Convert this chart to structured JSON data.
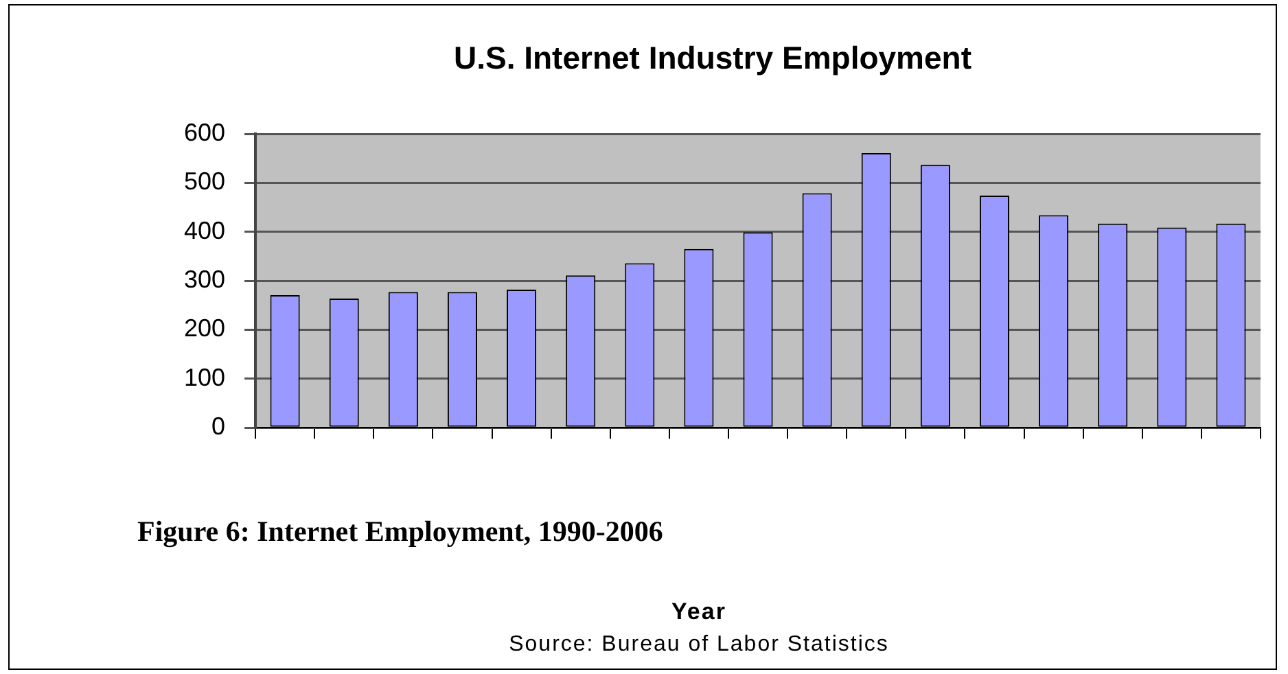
{
  "chart_data": {
    "type": "bar",
    "title": "U.S. Internet Industry Employment",
    "categories": [
      null,
      null,
      null,
      null,
      null,
      null,
      null,
      null,
      null,
      null,
      null,
      null,
      null,
      null,
      null,
      null,
      null
    ],
    "values": [
      271,
      264,
      277,
      277,
      282,
      311,
      336,
      365,
      399,
      479,
      561,
      537,
      474,
      434,
      417,
      409,
      417
    ],
    "color": "#9999ff",
    "ylim": [
      0,
      600
    ],
    "yticks": [
      0,
      100,
      200,
      300,
      400,
      500,
      600
    ],
    "grid": "y",
    "legend": false,
    "annotations": [
      "Figure 6:  Internet Employment, 1990-2006",
      "Year",
      "Source: Bureau of Labor Statistics"
    ]
  }
}
